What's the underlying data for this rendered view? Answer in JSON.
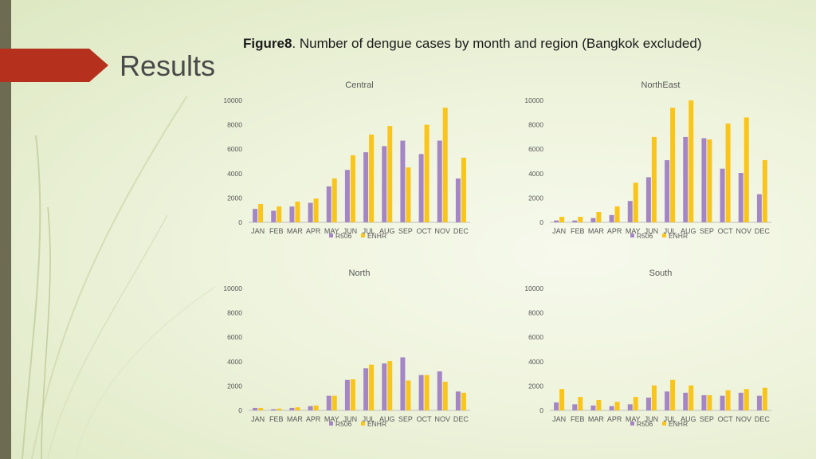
{
  "slide": {
    "title": "Results",
    "figure_label": "Figure8",
    "figure_caption": ". Number of dengue cases by month and region (Bangkok excluded)"
  },
  "colors": {
    "r506": "#a486c7",
    "enhr": "#f9c51b",
    "axis_text": "#595959",
    "side_bar": "#6d6c53",
    "accent_tab": "#b5311e"
  },
  "chart_data": [
    {
      "type": "bar",
      "title": "Central",
      "categories": [
        "JAN",
        "FEB",
        "MAR",
        "APR",
        "MAY",
        "JUN",
        "JUL",
        "AUG",
        "SEP",
        "OCT",
        "NOV",
        "DEC"
      ],
      "yticks": [
        "0",
        "2000",
        "4000",
        "6000",
        "8000",
        "10000"
      ],
      "ylim": [
        0,
        10000
      ],
      "legend_position": "bottom",
      "series": [
        {
          "name": "R506",
          "values": [
            1100,
            950,
            1300,
            1600,
            2950,
            4300,
            5750,
            6250,
            6700,
            5600,
            6700,
            3600
          ]
        },
        {
          "name": "ENHR",
          "values": [
            1500,
            1300,
            1700,
            1950,
            3600,
            5500,
            7200,
            7900,
            4500,
            8000,
            9400,
            5300
          ]
        }
      ]
    },
    {
      "type": "bar",
      "title": "NorthEast",
      "categories": [
        "JAN",
        "FEB",
        "MAR",
        "APR",
        "MAY",
        "JUN",
        "JUL",
        "AUG",
        "SEP",
        "OCT",
        "NOV",
        "DEC"
      ],
      "yticks": [
        "0",
        "2000",
        "4000",
        "6000",
        "8000",
        "10000"
      ],
      "ylim": [
        0,
        10000
      ],
      "legend_position": "bottom",
      "series": [
        {
          "name": "R506",
          "values": [
            150,
            150,
            350,
            600,
            1750,
            3700,
            5100,
            7000,
            6900,
            4400,
            4050,
            2300
          ]
        },
        {
          "name": "ENHR",
          "values": [
            450,
            450,
            850,
            1300,
            3250,
            7000,
            9400,
            10000,
            6800,
            8100,
            8600,
            5100
          ]
        }
      ]
    },
    {
      "type": "bar",
      "title": "North",
      "categories": [
        "JAN",
        "FEB",
        "MAR",
        "APR",
        "MAY",
        "JUN",
        "JUL",
        "AUG",
        "SEP",
        "OCT",
        "NOV",
        "DEC"
      ],
      "yticks": [
        "0",
        "2000",
        "4000",
        "6000",
        "8000",
        "10000"
      ],
      "ylim": [
        0,
        10000
      ],
      "legend_position": "bottom",
      "series": [
        {
          "name": "R506",
          "values": [
            200,
            100,
            200,
            350,
            1200,
            2500,
            3450,
            3850,
            4350,
            2900,
            3200,
            1550
          ]
        },
        {
          "name": "ENHR",
          "values": [
            200,
            150,
            250,
            400,
            1200,
            2550,
            3750,
            4050,
            2450,
            2900,
            2350,
            1450
          ]
        }
      ]
    },
    {
      "type": "bar",
      "title": "South",
      "categories": [
        "JAN",
        "FEB",
        "MAR",
        "APR",
        "MAY",
        "JUN",
        "JUL",
        "AUG",
        "SEP",
        "OCT",
        "NOV",
        "DEC"
      ],
      "yticks": [
        "0",
        "2000",
        "4000",
        "6000",
        "8000",
        "10000"
      ],
      "ylim": [
        0,
        10000
      ],
      "legend_position": "bottom",
      "series": [
        {
          "name": "R506",
          "values": [
            650,
            500,
            400,
            350,
            500,
            1050,
            1550,
            1450,
            1250,
            1200,
            1450,
            1200
          ]
        },
        {
          "name": "ENHR",
          "values": [
            1750,
            1100,
            850,
            700,
            1100,
            2050,
            2500,
            2050,
            1250,
            1650,
            1750,
            1850
          ]
        }
      ]
    }
  ]
}
